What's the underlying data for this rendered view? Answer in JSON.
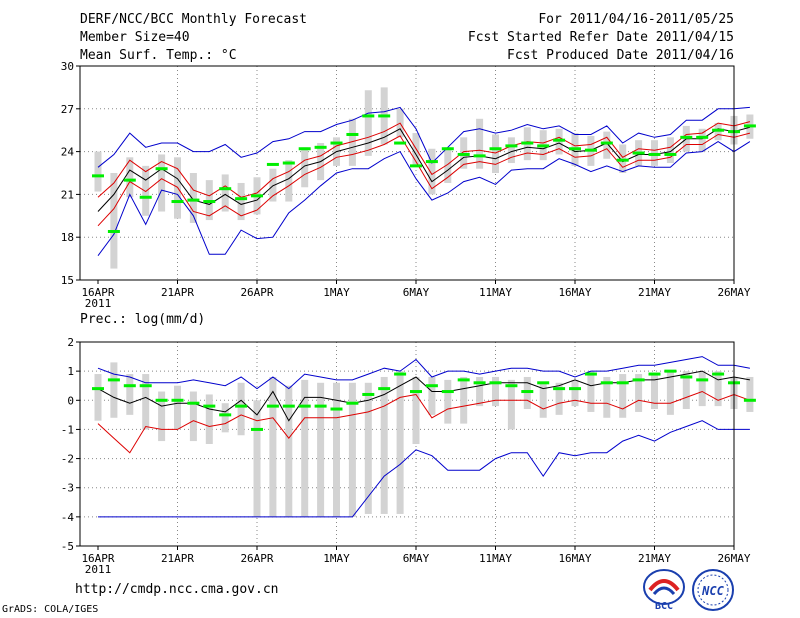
{
  "header": {
    "title": "DERF/NCC/BCC Monthly Forecast",
    "member_size": "Member Size=40",
    "variable": "Mean Surf. Temp.: °C",
    "period": "For 2011/04/16-2011/05/25",
    "refer_date": "Fcst Started Refer Date 2011/04/15",
    "produced_date": "Fcst Produced Date 2011/04/16"
  },
  "footer": {
    "url": "http://cmdp.ncc.cma.gov.cn",
    "credit": "GrADS: COLA/IGES",
    "logo1_text": "BCC",
    "logo2_text": "NCC"
  },
  "colors": {
    "box": "#d3d3d3",
    "median": "#00ee00",
    "mean": "#000000",
    "std": "#dd0000",
    "range": "#0000cc",
    "grid": "#888888"
  },
  "chart_data": [
    {
      "type": "line",
      "title": "Mean Surf. Temp.: °C",
      "xlabel": "",
      "ylabel": "",
      "ylim": [
        15,
        30
      ],
      "yticks": [
        "15",
        "18",
        "21",
        "24",
        "27",
        "30"
      ],
      "ytick_values": [
        15,
        18,
        21,
        24,
        27,
        30
      ],
      "xtick_labels": [
        "16APR",
        "21APR",
        "26APR",
        "1MAY",
        "6MAY",
        "11MAY",
        "16MAY",
        "21MAY",
        "26MAY"
      ],
      "xtick_days": [
        0,
        5,
        10,
        15,
        20,
        25,
        30,
        35,
        40
      ],
      "year_label": "2011",
      "days": 40,
      "series": [
        {
          "name": "ensemble max",
          "values": [
            22.9,
            23.8,
            25.3,
            24.3,
            24.6,
            24.6,
            24.0,
            24.0,
            24.5,
            23.6,
            23.9,
            24.7,
            24.9,
            25.4,
            25.4,
            25.9,
            26.2,
            26.7,
            26.8,
            27.1,
            25.6,
            23.2,
            24.3,
            25.4,
            25.6,
            25.3,
            25.5,
            25.9,
            25.6,
            25.8,
            25.2,
            25.2,
            25.8,
            24.6,
            25.3,
            25.0,
            25.2,
            26.2,
            26.2,
            27.0,
            27.0,
            27.1
          ]
        },
        {
          "name": "mean + std",
          "values": [
            20.8,
            21.8,
            23.4,
            22.6,
            23.3,
            22.8,
            21.3,
            20.9,
            21.6,
            20.8,
            21.1,
            22.1,
            22.6,
            23.4,
            23.7,
            24.4,
            24.7,
            25.0,
            25.4,
            26.0,
            24.2,
            22.4,
            23.1,
            24.0,
            24.1,
            23.9,
            24.4,
            24.7,
            24.6,
            25.0,
            24.4,
            24.5,
            25.0,
            23.6,
            24.2,
            24.1,
            24.3,
            25.2,
            25.3,
            26.0,
            25.8,
            26.1
          ]
        },
        {
          "name": "ensemble mean",
          "values": [
            19.8,
            21.0,
            22.7,
            22.0,
            22.8,
            22.1,
            20.6,
            20.3,
            21.0,
            20.3,
            20.6,
            21.6,
            22.1,
            23.0,
            23.3,
            24.0,
            24.3,
            24.6,
            25.0,
            25.6,
            23.8,
            21.9,
            22.7,
            23.6,
            23.7,
            23.5,
            24.0,
            24.3,
            24.2,
            24.6,
            24.0,
            24.1,
            24.6,
            23.3,
            23.8,
            23.8,
            24.0,
            24.9,
            24.9,
            25.6,
            25.4,
            25.7
          ]
        },
        {
          "name": "mean - std",
          "values": [
            18.8,
            20.0,
            21.9,
            21.2,
            22.1,
            21.5,
            19.8,
            19.5,
            20.2,
            19.5,
            19.9,
            20.9,
            21.6,
            22.4,
            22.9,
            23.6,
            23.8,
            24.1,
            24.5,
            25.1,
            23.3,
            21.4,
            22.2,
            23.1,
            23.3,
            23.1,
            23.6,
            23.9,
            23.8,
            24.2,
            23.6,
            23.7,
            24.2,
            22.9,
            23.4,
            23.4,
            23.6,
            24.5,
            24.5,
            25.2,
            25.0,
            25.3
          ]
        },
        {
          "name": "ensemble min",
          "values": [
            16.7,
            18.2,
            21.0,
            18.9,
            21.3,
            21.0,
            19.5,
            16.8,
            16.8,
            18.5,
            17.9,
            18.0,
            19.7,
            20.6,
            21.6,
            22.5,
            22.8,
            22.8,
            23.5,
            24.0,
            22.1,
            20.6,
            21.1,
            21.9,
            22.2,
            21.7,
            22.7,
            22.8,
            22.8,
            23.5,
            23.1,
            22.6,
            23.0,
            22.6,
            23.0,
            22.9,
            22.9,
            23.9,
            24.0,
            24.7,
            24.0,
            24.7
          ]
        }
      ],
      "median": [
        22.3,
        18.4,
        22.0,
        20.8,
        22.8,
        20.5,
        20.6,
        20.5,
        21.4,
        20.7,
        20.9,
        23.1,
        23.2,
        24.2,
        24.3,
        24.6,
        25.2,
        26.5,
        26.5,
        24.6,
        23.0,
        23.3,
        24.2,
        23.8,
        23.7,
        24.2,
        24.4,
        24.6,
        24.4,
        24.8,
        24.2,
        24.1,
        24.6,
        23.4,
        23.9,
        23.8,
        23.8,
        25.0,
        25.0,
        25.5,
        25.4,
        25.8
      ],
      "box_low": [
        21.2,
        15.8,
        20.8,
        19.5,
        19.8,
        19.3,
        19.0,
        19.2,
        19.8,
        19.2,
        19.6,
        20.5,
        20.5,
        21.5,
        22.0,
        23.0,
        23.0,
        23.7,
        24.5,
        25.0,
        23.0,
        21.0,
        21.8,
        22.8,
        22.8,
        22.5,
        23.2,
        23.4,
        23.4,
        23.8,
        23.0,
        23.0,
        23.5,
        22.5,
        23.0,
        23.0,
        23.2,
        24.0,
        24.0,
        24.8,
        24.5,
        24.9
      ],
      "box_high": [
        24.0,
        22.5,
        23.6,
        23.0,
        23.8,
        23.6,
        22.5,
        22.0,
        22.4,
        21.8,
        22.2,
        22.8,
        23.4,
        24.3,
        24.6,
        25.0,
        26.3,
        28.3,
        28.5,
        27.0,
        25.3,
        24.2,
        24.3,
        25.0,
        26.3,
        25.2,
        25.0,
        25.7,
        25.5,
        25.6,
        25.3,
        25.1,
        25.4,
        24.5,
        24.8,
        24.8,
        25.0,
        25.8,
        25.6,
        26.0,
        26.5,
        26.6
      ]
    },
    {
      "type": "line",
      "title": "Prec.: log(mm/d)",
      "xlabel": "",
      "ylabel": "",
      "ylim": [
        -5,
        2
      ],
      "yticks": [
        "-5",
        "-4",
        "-3",
        "-2",
        "-1",
        "0",
        "1",
        "2"
      ],
      "ytick_values": [
        -5,
        -4,
        -3,
        -2,
        -1,
        0,
        1,
        2
      ],
      "xtick_labels": [
        "16APR",
        "21APR",
        "26APR",
        "1MAY",
        "6MAY",
        "11MAY",
        "16MAY",
        "21MAY",
        "26MAY"
      ],
      "xtick_days": [
        0,
        5,
        10,
        15,
        20,
        25,
        30,
        35,
        40
      ],
      "year_label": "2011",
      "days": 40,
      "series": [
        {
          "name": "ensemble max",
          "values": [
            1.1,
            0.9,
            0.8,
            0.6,
            0.6,
            0.6,
            0.7,
            0.6,
            0.5,
            0.8,
            0.4,
            0.8,
            0.4,
            0.9,
            0.8,
            0.7,
            0.7,
            0.9,
            1.1,
            1.0,
            1.4,
            0.8,
            1.0,
            1.0,
            0.9,
            1.0,
            1.1,
            1.1,
            1.0,
            1.0,
            0.8,
            1.0,
            1.0,
            1.1,
            1.2,
            1.2,
            1.3,
            1.4,
            1.5,
            1.2,
            1.2,
            1.1
          ]
        },
        {
          "name": "ensemble mean",
          "values": [
            0.4,
            0.1,
            -0.1,
            0.1,
            -0.2,
            -0.1,
            -0.1,
            -0.3,
            -0.4,
            0.0,
            -0.5,
            0.3,
            -0.7,
            0.1,
            0.1,
            0.0,
            -0.1,
            0.0,
            0.2,
            0.5,
            0.8,
            0.3,
            0.3,
            0.4,
            0.5,
            0.6,
            0.6,
            0.6,
            0.4,
            0.5,
            0.7,
            0.5,
            0.6,
            0.6,
            0.7,
            0.7,
            0.8,
            0.9,
            1.0,
            0.7,
            0.8,
            0.7
          ]
        },
        {
          "name": "mean - std",
          "values": [
            -0.8,
            -1.3,
            -1.8,
            -0.9,
            -1.0,
            -1.0,
            -0.7,
            -0.9,
            -0.8,
            -0.5,
            -0.7,
            -0.6,
            -1.3,
            -0.6,
            -0.6,
            -0.6,
            -0.5,
            -0.4,
            -0.2,
            0.1,
            0.2,
            -0.6,
            -0.3,
            -0.2,
            -0.1,
            0.0,
            0.0,
            0.0,
            -0.3,
            -0.1,
            0.0,
            -0.1,
            -0.1,
            -0.3,
            0.0,
            -0.1,
            -0.1,
            0.1,
            0.3,
            0.0,
            0.2,
            0.0
          ]
        },
        {
          "name": "ensemble min",
          "values": [
            -4,
            -4,
            -4,
            -4,
            -4,
            -4,
            -4,
            -4,
            -4,
            -4,
            -4,
            -4,
            -4,
            -4,
            -4,
            -4,
            -4,
            -3.3,
            -2.6,
            -2.2,
            -1.7,
            -1.9,
            -2.4,
            -2.4,
            -2.4,
            -2.0,
            -1.8,
            -1.8,
            -2.6,
            -1.8,
            -1.9,
            -1.8,
            -1.8,
            -1.4,
            -1.2,
            -1.4,
            -1.1,
            -0.9,
            -0.7,
            -1.0,
            -1.0,
            -1.0
          ]
        }
      ],
      "median": [
        0.4,
        0.7,
        0.5,
        0.5,
        0.0,
        0.0,
        -0.1,
        -0.2,
        -0.5,
        -0.2,
        -1.0,
        -0.2,
        -0.2,
        -0.2,
        -0.2,
        -0.3,
        -0.1,
        0.2,
        0.4,
        0.9,
        0.3,
        0.5,
        0.3,
        0.7,
        0.6,
        0.6,
        0.5,
        0.3,
        0.6,
        0.4,
        0.4,
        0.9,
        0.6,
        0.6,
        0.7,
        0.9,
        1.0,
        0.8,
        0.7,
        0.9,
        0.6,
        0.0
      ],
      "box_low": [
        -0.7,
        -0.6,
        -0.5,
        -1.0,
        -1.4,
        -1.0,
        -1.4,
        -1.5,
        -1.1,
        -1.2,
        -4,
        -4,
        -4,
        -4,
        -4,
        -4,
        -4,
        -3.9,
        -3.9,
        -3.9,
        -1.5,
        -0.5,
        -0.8,
        -0.8,
        -0.2,
        -0.2,
        -1.0,
        -0.3,
        -0.6,
        -0.5,
        -0.2,
        -0.4,
        -0.6,
        -0.6,
        -0.4,
        -0.3,
        -0.5,
        -0.3,
        -0.2,
        -0.2,
        -0.3,
        -0.4
      ],
      "box_high": [
        0.9,
        1.3,
        0.9,
        0.9,
        0.3,
        0.5,
        0.3,
        0.2,
        -0.1,
        0.6,
        0.0,
        0.8,
        0.5,
        0.7,
        0.6,
        0.6,
        0.6,
        0.6,
        0.8,
        1.0,
        0.8,
        0.8,
        0.7,
        0.8,
        0.8,
        0.8,
        0.7,
        0.8,
        0.6,
        0.6,
        0.7,
        1.0,
        0.8,
        0.9,
        0.9,
        0.9,
        1.0,
        1.0,
        1.0,
        1.0,
        0.8,
        0.8
      ]
    }
  ]
}
